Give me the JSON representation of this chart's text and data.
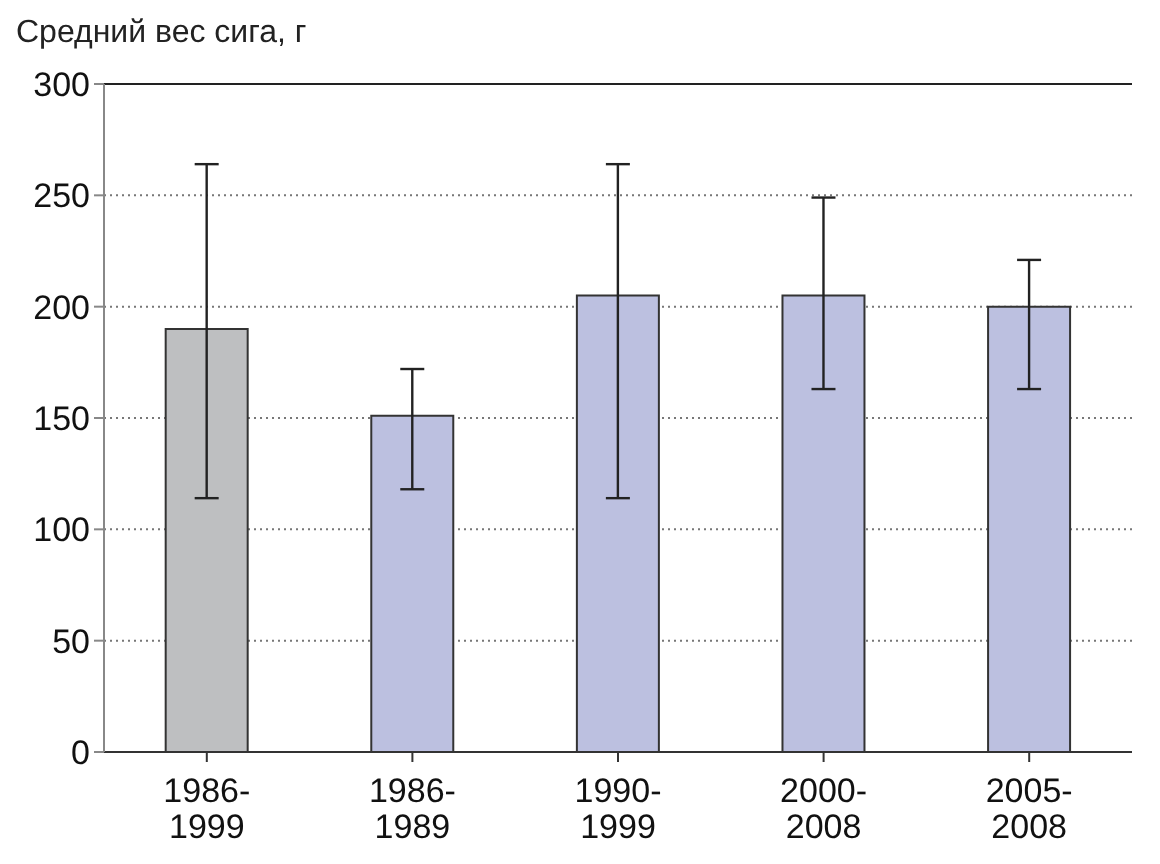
{
  "chart_data": {
    "type": "bar",
    "ylabel": "Средний вес сига, г",
    "categories": [
      "1986-1999",
      "1986-1989",
      "1990-1999",
      "2000-2008",
      "2005-2008"
    ],
    "values": [
      190,
      151,
      205,
      205,
      200
    ],
    "colors": [
      "#bebfc1",
      "#bcc0e0",
      "#bcc0e0",
      "#bcc0e0",
      "#bcc0e0"
    ],
    "errors": [
      [
        114,
        264
      ],
      [
        118,
        172
      ],
      [
        114,
        264
      ],
      [
        163,
        249
      ],
      [
        163,
        221
      ]
    ],
    "ylim": [
      0,
      300
    ],
    "yticks": [
      0,
      50,
      100,
      150,
      200,
      250,
      300
    ],
    "grid": "y"
  }
}
